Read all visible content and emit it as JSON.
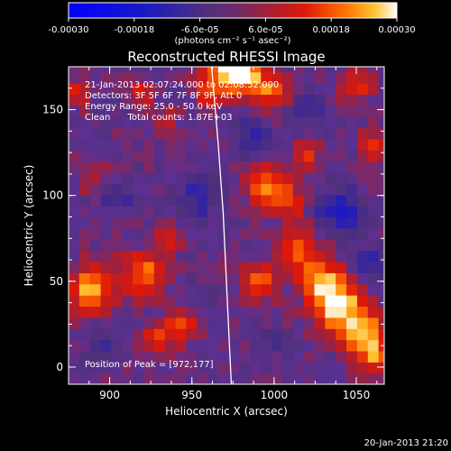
{
  "colorbar": {
    "tick_labels": [
      "-0.00030",
      "-0.00018",
      "-6.0e-05",
      "6.0e-05",
      "0.00018",
      "0.00030"
    ],
    "tick_values": [
      -0.0003,
      -0.00018,
      -6e-05,
      6e-05,
      0.00018,
      0.0003
    ],
    "range": [
      -0.0003,
      0.0003
    ],
    "units": "(photons cm⁻² s⁻¹ asec⁻²)"
  },
  "chart_data": {
    "type": "heatmap",
    "title": "Reconstructed RHESSI Image",
    "xlabel": "Heliocentric X (arcsec)",
    "ylabel": "Heliocentric Y (arcsec)",
    "xlim": [
      875,
      1067
    ],
    "ylim": [
      -10,
      175
    ],
    "xticks": [
      900,
      950,
      1000,
      1050
    ],
    "yticks": [
      0,
      50,
      100,
      150
    ],
    "annotations": [
      "21-Jan-2013 02:07:24.000 to 02:08:52.000",
      "Detectors: 3F 5F 6F 7F 8F 9F, Att 0",
      "Energy Range: 25.0 - 50.0 keV",
      "Clean      Total counts: 1.87E+03"
    ],
    "peak_label": "Position of Peak = [972,177]",
    "peak": [
      972,
      177
    ],
    "solar_limb": [
      [
        962,
        175
      ],
      [
        966,
        130
      ],
      [
        969,
        90
      ],
      [
        971,
        50
      ],
      [
        973,
        10
      ],
      [
        974,
        -10
      ]
    ],
    "hot_spots": [
      {
        "x": 920,
        "y": 55,
        "value": 0.0002,
        "r": 9
      },
      {
        "x": 888,
        "y": 45,
        "value": 0.00024,
        "r": 10
      },
      {
        "x": 930,
        "y": 18,
        "value": 0.00014,
        "r": 7
      },
      {
        "x": 945,
        "y": 25,
        "value": 0.00015,
        "r": 7
      },
      {
        "x": 935,
        "y": 75,
        "value": 0.00012,
        "r": 6
      },
      {
        "x": 935,
        "y": 145,
        "value": 0.0001,
        "r": 5
      },
      {
        "x": 920,
        "y": 160,
        "value": 0.00012,
        "r": 6
      },
      {
        "x": 960,
        "y": 160,
        "value": 0.00016,
        "r": 6
      },
      {
        "x": 972,
        "y": 177,
        "value": 0.0003,
        "r": 10
      },
      {
        "x": 985,
        "y": 170,
        "value": 0.0002,
        "r": 8
      },
      {
        "x": 1000,
        "y": 160,
        "value": 0.00018,
        "r": 7
      },
      {
        "x": 1020,
        "y": 125,
        "value": 0.00013,
        "r": 6
      },
      {
        "x": 1050,
        "y": 165,
        "value": 0.00016,
        "r": 7
      },
      {
        "x": 1060,
        "y": 130,
        "value": 0.00014,
        "r": 6
      },
      {
        "x": 997,
        "y": 105,
        "value": 0.00022,
        "r": 9
      },
      {
        "x": 990,
        "y": 50,
        "value": 0.00018,
        "r": 8
      },
      {
        "x": 1010,
        "y": 95,
        "value": 0.00012,
        "r": 6
      },
      {
        "x": 1015,
        "y": 70,
        "value": 0.00018,
        "r": 9
      },
      {
        "x": 1030,
        "y": 50,
        "value": 0.00022,
        "r": 10
      },
      {
        "x": 1040,
        "y": 35,
        "value": 0.00026,
        "r": 10
      },
      {
        "x": 1055,
        "y": 20,
        "value": 0.00024,
        "r": 9
      },
      {
        "x": 1062,
        "y": 5,
        "value": 0.00018,
        "r": 7
      },
      {
        "x": 890,
        "y": 110,
        "value": 0.0001,
        "r": 6
      },
      {
        "x": 880,
        "y": 160,
        "value": 0.00015,
        "r": 6
      },
      {
        "x": 905,
        "y": 100,
        "value": -8e-05,
        "r": 8
      },
      {
        "x": 985,
        "y": 135,
        "value": -0.0001,
        "r": 8
      },
      {
        "x": 955,
        "y": 100,
        "value": -0.00012,
        "r": 9
      },
      {
        "x": 1040,
        "y": 90,
        "value": -0.00015,
        "r": 10
      },
      {
        "x": 1060,
        "y": 60,
        "value": -0.00012,
        "r": 8
      },
      {
        "x": 895,
        "y": 15,
        "value": -8e-05,
        "r": 7
      },
      {
        "x": 955,
        "y": 40,
        "value": -6e-05,
        "r": 7
      },
      {
        "x": 1020,
        "y": 150,
        "value": -0.0001,
        "r": 7
      },
      {
        "x": 1000,
        "y": 15,
        "value": -7e-05,
        "r": 6
      }
    ]
  },
  "footer": {
    "timestamp": "20-Jan-2013 21:20"
  }
}
